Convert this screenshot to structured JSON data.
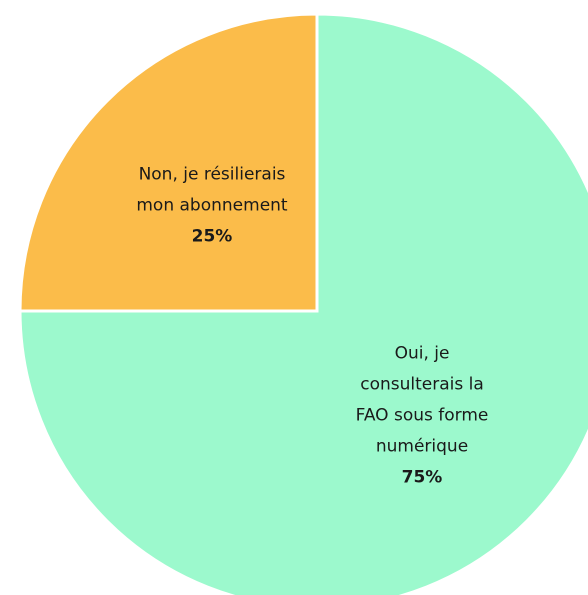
{
  "chart_data": {
    "type": "pie",
    "categories": [
      "Oui, je consulterais la FAO sous forme numérique",
      "Non, je résilierais mon abonnement"
    ],
    "values": [
      75,
      25
    ],
    "value_labels": [
      "75%",
      "25%"
    ],
    "colors": [
      "#9cf9cd",
      "#fbbc4a"
    ]
  }
}
